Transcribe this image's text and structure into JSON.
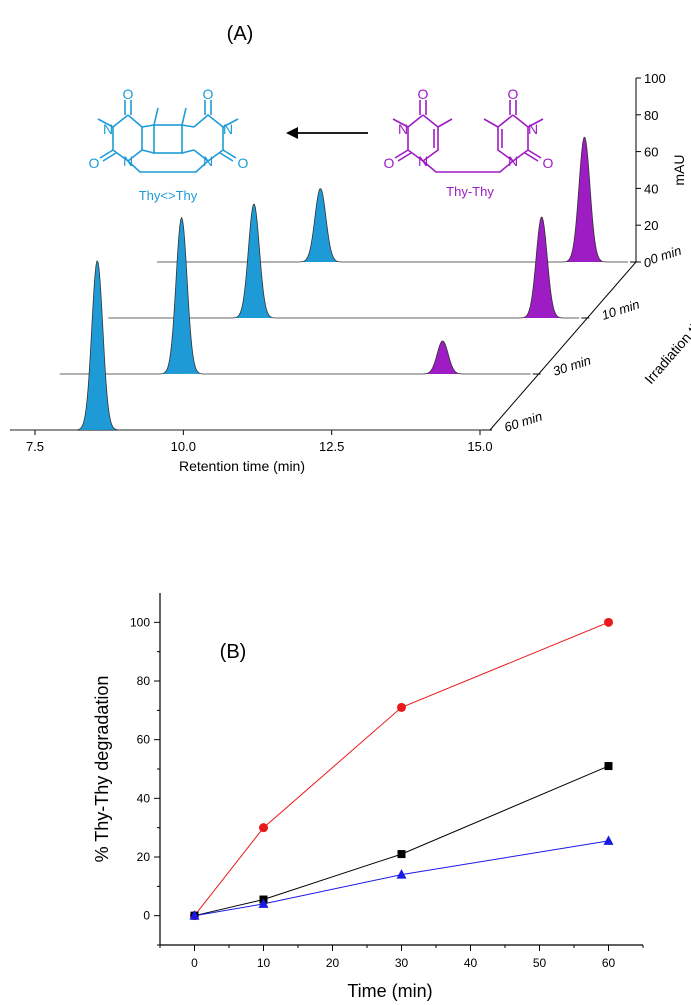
{
  "colors": {
    "cyclobutane": "#1E9BD7",
    "thy_thy": "#9E1CC4",
    "series_red": "#E8191A",
    "series_black": "#000000",
    "series_blue": "#1A1AE6"
  },
  "panel_a": {
    "label": "(A)",
    "product_name": "Thy<>Thy",
    "reactant_name": "Thy-Thy"
  },
  "chart_data": [
    {
      "type": "line",
      "panel": "(A)",
      "title": "",
      "xlabel": "Retention time (min)",
      "ylabel": "mAU",
      "zlabel": "Irradiation time",
      "xlim": [
        7.5,
        15.0
      ],
      "ylim": [
        0,
        100
      ],
      "x_ticks": [
        "7.5",
        "10.0",
        "12.5",
        "15.0"
      ],
      "y_ticks": [
        "0",
        "20",
        "40",
        "60",
        "80",
        "100"
      ],
      "z_categories": [
        "0 min",
        "10 min",
        "30 min",
        "60 min"
      ],
      "series": [
        {
          "trace": "0 min",
          "peaks": [
            {
              "rt": 9.85,
              "height": 40,
              "color": "cyclobutane"
            },
            {
              "rt": 14.3,
              "height": 68,
              "color": "thy_thy"
            }
          ]
        },
        {
          "trace": "10 min",
          "peaks": [
            {
              "rt": 9.55,
              "height": 62,
              "color": "cyclobutane"
            },
            {
              "rt": 14.4,
              "height": 55,
              "color": "thy_thy"
            }
          ]
        },
        {
          "trace": "30 min",
          "peaks": [
            {
              "rt": 9.15,
              "height": 85,
              "color": "cyclobutane"
            },
            {
              "rt": 13.55,
              "height": 18,
              "color": "thy_thy"
            }
          ]
        },
        {
          "trace": "60 min",
          "peaks": [
            {
              "rt": 8.55,
              "height": 92,
              "color": "cyclobutane"
            }
          ]
        }
      ]
    },
    {
      "type": "scatter",
      "panel": "(B)",
      "title": "",
      "xlabel": "Time (min)",
      "ylabel": "% Thy-Thy degradation",
      "xlim": [
        -5,
        65
      ],
      "ylim": [
        -10,
        110
      ],
      "x_ticks": [
        "0",
        "10",
        "20",
        "30",
        "40",
        "50",
        "60"
      ],
      "y_ticks": [
        "0",
        "20",
        "40",
        "60",
        "80",
        "100"
      ],
      "x": [
        0,
        10,
        30,
        60
      ],
      "series": [
        {
          "values": [
            0,
            30,
            71,
            100
          ],
          "color": "series_red",
          "marker": "circle"
        },
        {
          "values": [
            0,
            5.5,
            21,
            51
          ],
          "color": "series_black",
          "marker": "square"
        },
        {
          "values": [
            0,
            4,
            14,
            25.5
          ],
          "color": "series_blue",
          "marker": "triangle"
        }
      ]
    }
  ]
}
